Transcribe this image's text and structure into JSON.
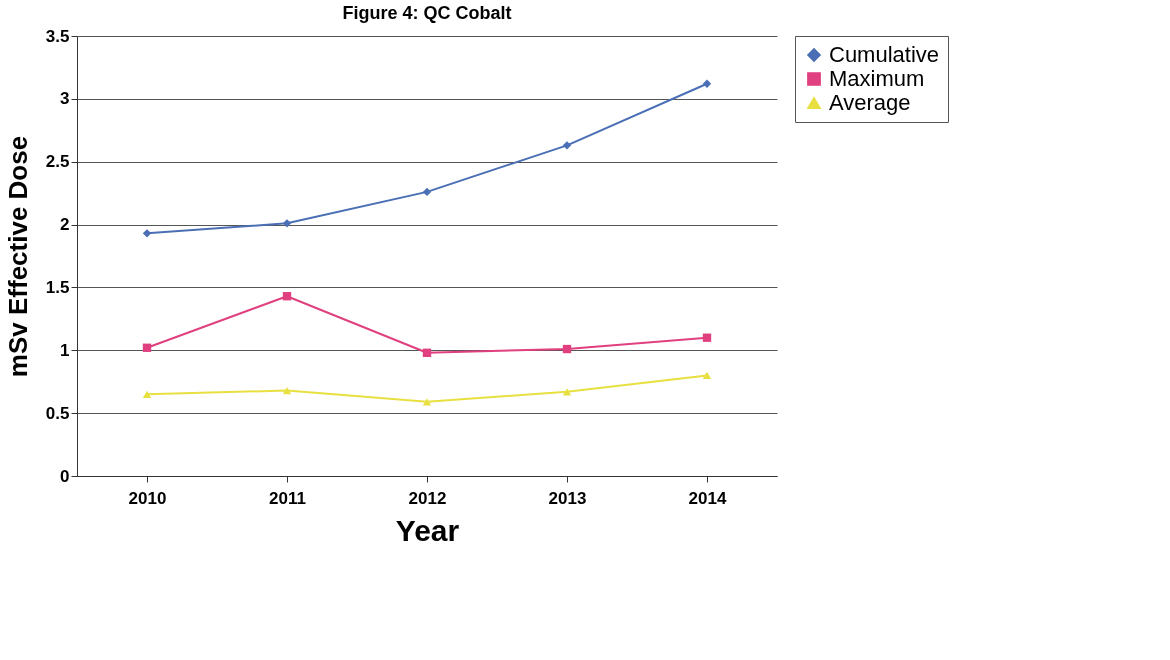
{
  "chart_data": {
    "type": "line",
    "title": "Figure 4: QC Cobalt",
    "xlabel": "Year",
    "ylabel": "mSv Effective Dose",
    "categories": [
      "2010",
      "2011",
      "2012",
      "2013",
      "2014"
    ],
    "series": [
      {
        "name": "Cumulative",
        "color": "#4a6fb5",
        "marker": "diamond",
        "values": [
          1.93,
          2.01,
          2.26,
          2.63,
          3.12
        ]
      },
      {
        "name": "Maximum",
        "color": "#e0407f",
        "marker": "square",
        "values": [
          1.02,
          1.43,
          0.98,
          1.01,
          1.1
        ]
      },
      {
        "name": "Average",
        "color": "#e8e040",
        "marker": "triangle",
        "values": [
          0.65,
          0.68,
          0.59,
          0.67,
          0.8
        ]
      }
    ],
    "ylim": [
      0,
      3.5
    ],
    "yticks": [
      0,
      0.5,
      1,
      1.5,
      2,
      2.5,
      3,
      3.5
    ],
    "grid": "y",
    "legend": "right"
  }
}
